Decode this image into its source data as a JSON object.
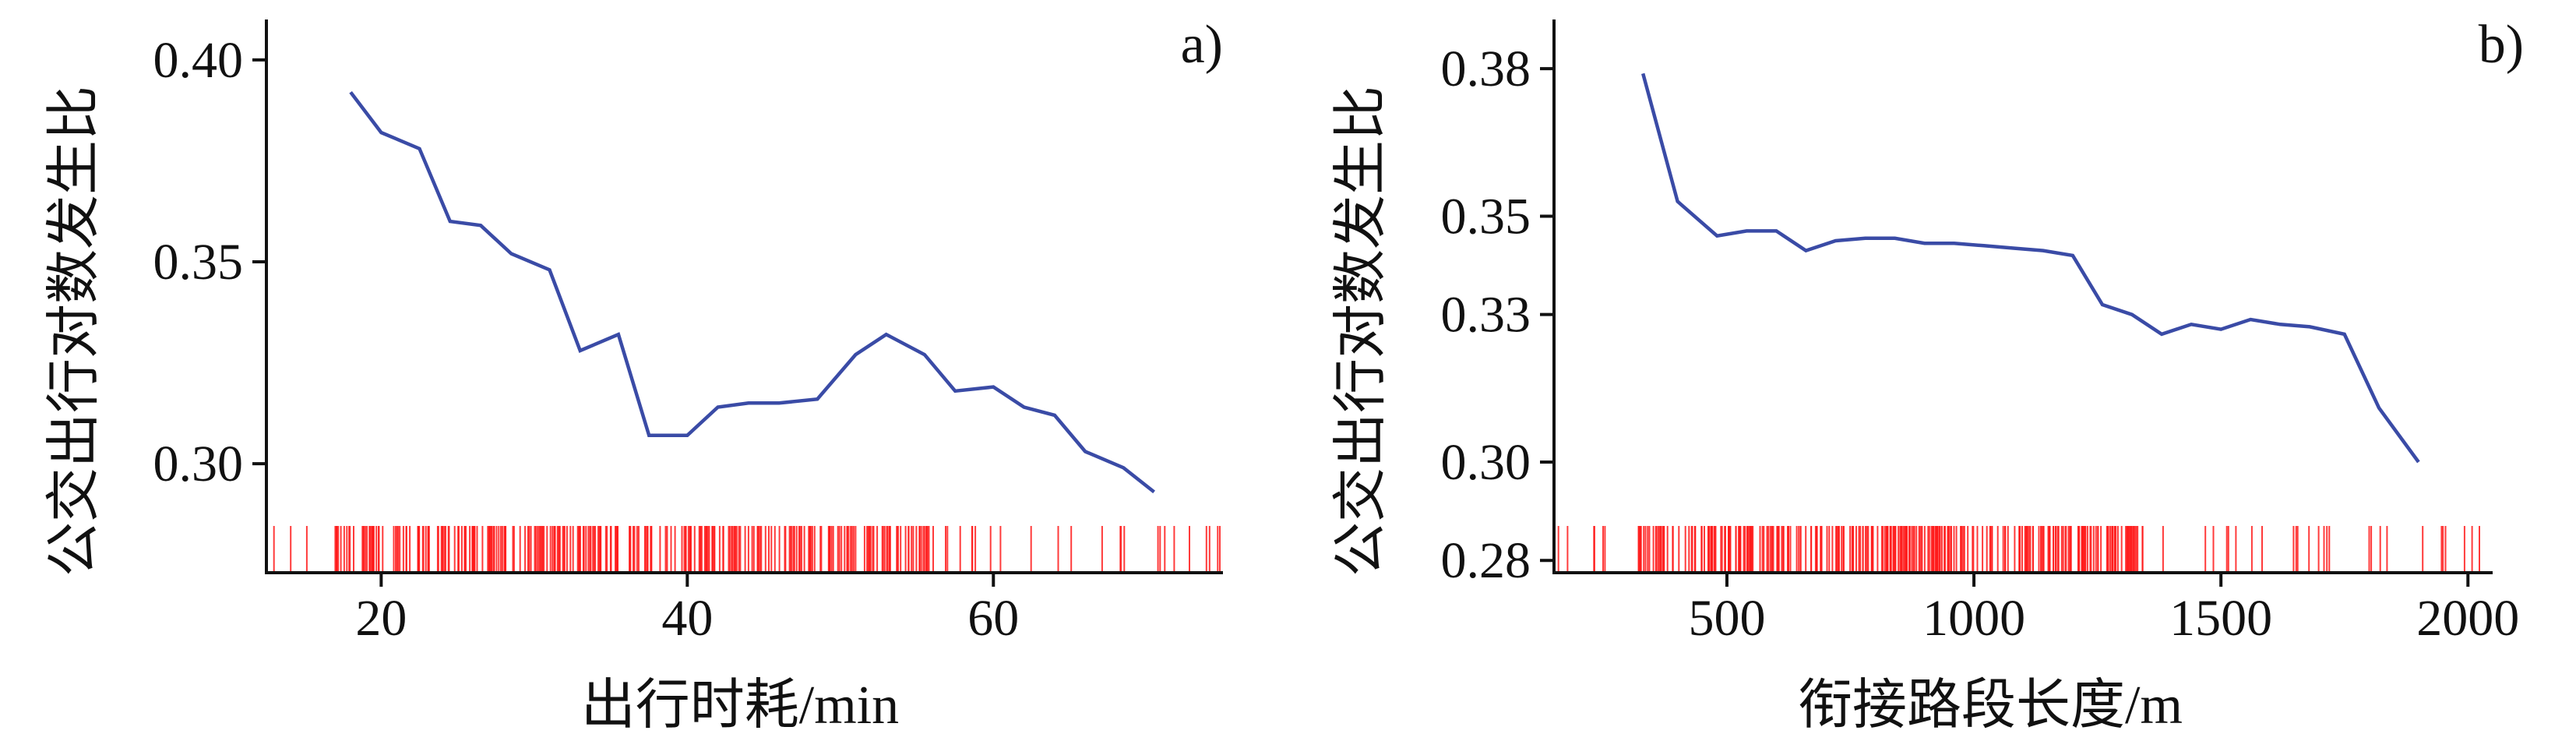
{
  "colors": {
    "line": "#3a4ba6",
    "rug": "#ff1a1a",
    "axis": "#111111"
  },
  "chart_data": [
    {
      "type": "line",
      "panel_label": "a)",
      "xlabel": "出行时耗/min",
      "ylabel": "公交出行对数发生比",
      "xlim": [
        12.5,
        75
      ],
      "ylim": [
        0.273,
        0.41
      ],
      "xticks": [
        20,
        40,
        60
      ],
      "yticks": [
        0.3,
        0.35,
        0.4
      ],
      "ytick_labels": [
        "0.30",
        "0.35",
        "0.40"
      ],
      "x": [
        18,
        20,
        22.5,
        24.5,
        26.5,
        28.5,
        31,
        33,
        35.5,
        37.5,
        40,
        42,
        44,
        46,
        48.5,
        51,
        53,
        55.5,
        57.5,
        60,
        62,
        64,
        66,
        68.5,
        70.5
      ],
      "y": [
        0.392,
        0.382,
        0.378,
        0.36,
        0.359,
        0.352,
        0.348,
        0.328,
        0.332,
        0.307,
        0.307,
        0.314,
        0.315,
        0.315,
        0.316,
        0.327,
        0.332,
        0.327,
        0.318,
        0.319,
        0.314,
        0.312,
        0.303,
        0.299,
        0.293
      ],
      "rug": {
        "range": [
          12.5,
          75
        ],
        "count": 330,
        "dense_range": [
          17,
          56
        ]
      }
    },
    {
      "type": "line",
      "panel_label": "b)",
      "xlabel": "衔接路段长度/m",
      "ylabel": "公交出行对数发生比",
      "xlim": [
        150,
        2050
      ],
      "ylim": [
        0.2775,
        0.39
      ],
      "xticks": [
        500,
        1000,
        1500,
        2000
      ],
      "yticks": [
        0.28,
        0.3,
        0.33,
        0.35,
        0.38
      ],
      "ytick_labels": [
        "0.28",
        "0.30",
        "0.33",
        "0.35",
        "0.38"
      ],
      "x": [
        330,
        400,
        480,
        540,
        600,
        660,
        720,
        780,
        840,
        900,
        960,
        1020,
        1080,
        1140,
        1200,
        1260,
        1320,
        1380,
        1440,
        1500,
        1560,
        1620,
        1680,
        1750,
        1820,
        1900
      ],
      "y": [
        0.379,
        0.353,
        0.346,
        0.347,
        0.347,
        0.343,
        0.345,
        0.3455,
        0.3455,
        0.3445,
        0.3445,
        0.344,
        0.3435,
        0.343,
        0.342,
        0.332,
        0.33,
        0.326,
        0.328,
        0.327,
        0.329,
        0.328,
        0.3275,
        0.326,
        0.311,
        0.3
      ],
      "rug": {
        "range": [
          150,
          2050
        ],
        "count": 340,
        "dense_range": [
          320,
          1350
        ]
      }
    }
  ]
}
